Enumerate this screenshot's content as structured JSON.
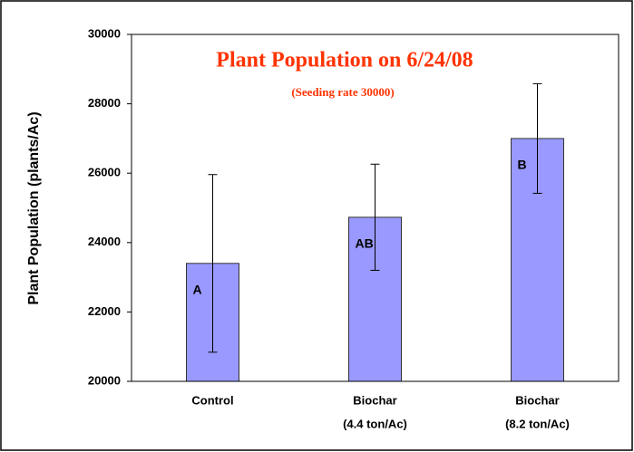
{
  "chart_data": {
    "type": "bar",
    "title": "Plant Population on 6/24/08",
    "subtitle": "(Seeding rate 30000)",
    "y_label": "Plant Population (plants/Ac)",
    "categories": [
      [
        "Control"
      ],
      [
        "Biochar",
        "(4.4 ton/Ac)"
      ],
      [
        "Biochar",
        "(8.2 ton/Ac)"
      ]
    ],
    "values": [
      23400,
      24730,
      27000
    ],
    "errors": [
      2560,
      1530,
      1580
    ],
    "annotations": [
      "A",
      "AB",
      "B"
    ],
    "color": "#9999ff",
    "ylim": [
      20000,
      30000
    ],
    "yticks": [
      20000,
      22000,
      24000,
      26000,
      28000,
      30000
    ],
    "grid": false
  }
}
